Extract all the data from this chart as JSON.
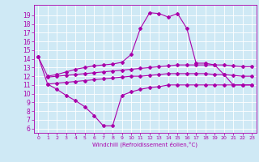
{
  "xlabel": "Windchill (Refroidissement éolien,°C)",
  "background_color": "#cfe9f5",
  "grid_color": "#ffffff",
  "line_color": "#aa00aa",
  "ylim": [
    5.5,
    20.2
  ],
  "yticks": [
    6,
    7,
    8,
    9,
    10,
    11,
    12,
    13,
    14,
    15,
    16,
    17,
    18,
    19
  ],
  "xlim": [
    -0.5,
    23.5
  ],
  "xticks": [
    0,
    1,
    2,
    3,
    4,
    5,
    6,
    7,
    8,
    9,
    10,
    11,
    12,
    13,
    14,
    15,
    16,
    17,
    18,
    19,
    20,
    21,
    22,
    23
  ],
  "line_top": {
    "x": [
      0,
      1,
      2,
      3,
      4,
      5,
      6,
      7,
      8,
      9,
      10,
      11,
      12,
      13,
      14,
      15,
      16,
      17,
      18,
      19,
      20,
      21,
      22,
      23
    ],
    "y": [
      14.2,
      12.0,
      12.2,
      12.5,
      12.8,
      13.0,
      13.2,
      13.3,
      13.4,
      13.6,
      14.5,
      17.5,
      19.3,
      19.2,
      18.8,
      19.2,
      17.5,
      13.5,
      13.5,
      13.3,
      12.2,
      11.0,
      11.0,
      11.0
    ]
  },
  "line_mid_upper": {
    "x": [
      0,
      1,
      2,
      3,
      4,
      5,
      6,
      7,
      8,
      9,
      10,
      11,
      12,
      13,
      14,
      15,
      16,
      17,
      18,
      19,
      20,
      21,
      22,
      23
    ],
    "y": [
      null,
      11.9,
      12.0,
      12.1,
      12.2,
      12.3,
      12.4,
      12.5,
      12.6,
      12.7,
      12.8,
      12.9,
      13.0,
      13.1,
      13.2,
      13.3,
      13.3,
      13.3,
      13.3,
      13.3,
      13.3,
      13.2,
      13.1,
      13.1
    ]
  },
  "line_mid_lower": {
    "x": [
      0,
      1,
      2,
      3,
      4,
      5,
      6,
      7,
      8,
      9,
      10,
      11,
      12,
      13,
      14,
      15,
      16,
      17,
      18,
      19,
      20,
      21,
      22,
      23
    ],
    "y": [
      null,
      11.1,
      11.2,
      11.3,
      11.4,
      11.5,
      11.6,
      11.7,
      11.8,
      11.9,
      12.0,
      12.0,
      12.1,
      12.2,
      12.3,
      12.3,
      12.3,
      12.3,
      12.3,
      12.2,
      12.2,
      12.1,
      12.0,
      12.0
    ]
  },
  "line_bot": {
    "x": [
      0,
      1,
      2,
      3,
      4,
      5,
      6,
      7,
      8,
      9,
      10,
      11,
      12,
      13,
      14,
      15,
      16,
      17,
      18,
      19,
      20,
      21,
      22,
      23
    ],
    "y": [
      14.2,
      11.1,
      10.5,
      9.8,
      9.2,
      8.5,
      7.5,
      6.3,
      6.3,
      9.8,
      10.2,
      10.5,
      10.7,
      10.8,
      11.0,
      11.0,
      11.0,
      11.0,
      11.0,
      11.0,
      11.0,
      11.0,
      11.0,
      11.0
    ]
  }
}
